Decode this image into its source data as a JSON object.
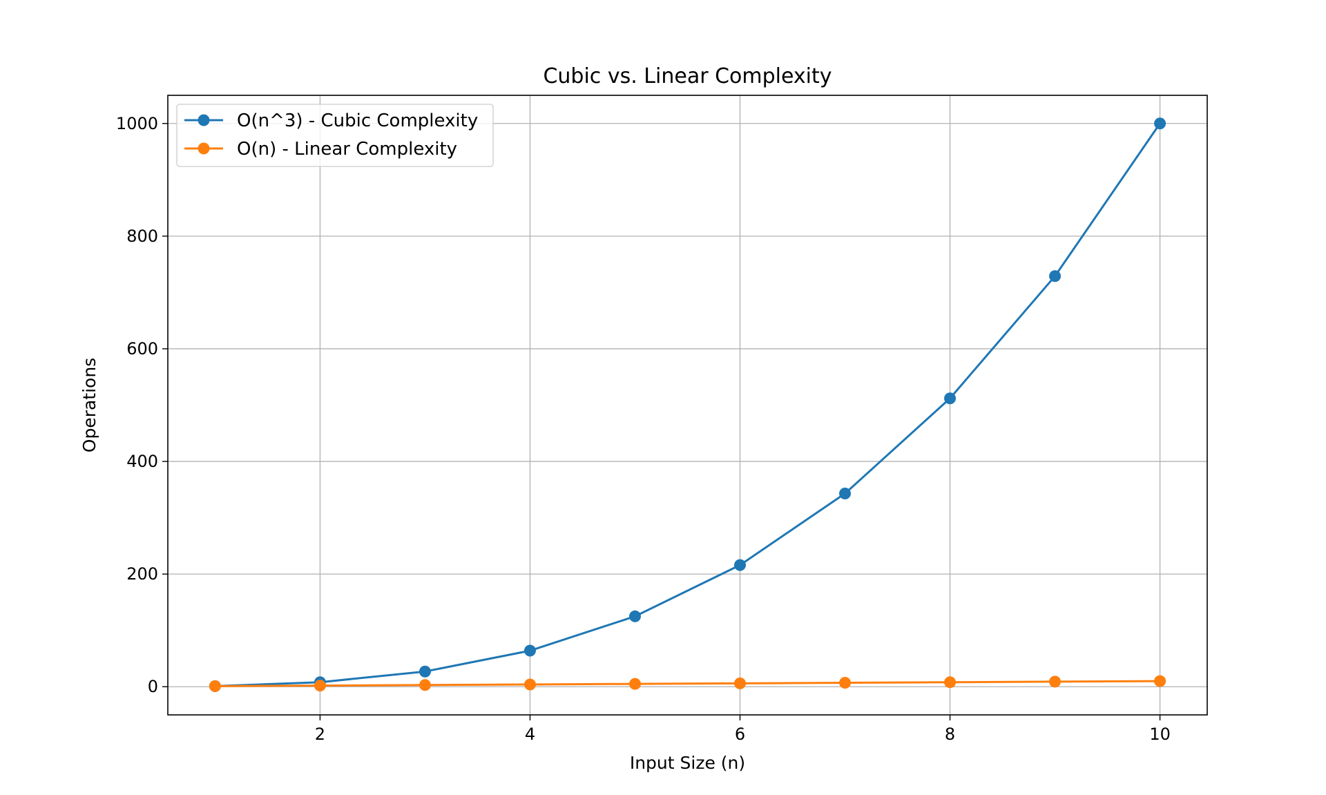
{
  "chart_data": {
    "type": "line",
    "title": "Cubic vs. Linear Complexity",
    "xlabel": "Input Size (n)",
    "ylabel": "Operations",
    "x": [
      1,
      2,
      3,
      4,
      5,
      6,
      7,
      8,
      9,
      10
    ],
    "xlim": [
      0.55,
      10.45
    ],
    "ylim": [
      -50,
      1050
    ],
    "xticks": [
      2,
      4,
      6,
      8,
      10
    ],
    "yticks": [
      0,
      200,
      400,
      600,
      800,
      1000
    ],
    "grid": true,
    "legend_position": "top-left",
    "series": [
      {
        "name": "O(n^3) - Cubic Complexity",
        "color": "#1f77b4",
        "values": [
          1,
          8,
          27,
          64,
          125,
          216,
          343,
          512,
          729,
          1000
        ]
      },
      {
        "name": "O(n) - Linear Complexity",
        "color": "#ff7f0e",
        "values": [
          1,
          2,
          3,
          4,
          5,
          6,
          7,
          8,
          9,
          10
        ]
      }
    ]
  }
}
